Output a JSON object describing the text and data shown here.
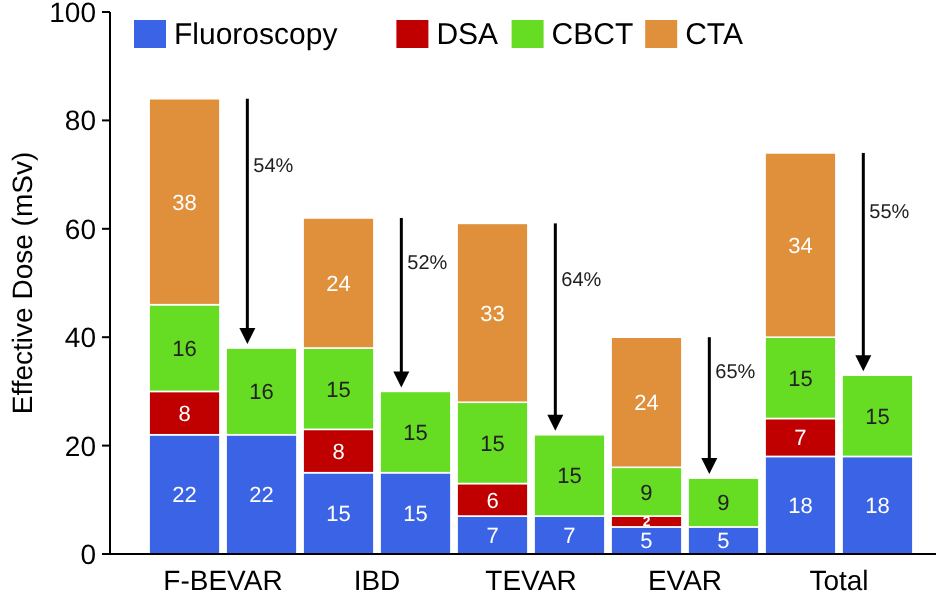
{
  "chart_data": {
    "type": "bar",
    "stacked": true,
    "ylabel": "Effective Dose (mSv)",
    "ylim": [
      0,
      100
    ],
    "yticks": [
      0,
      20,
      40,
      60,
      80,
      100
    ],
    "legend": "top",
    "grid": false,
    "categories": [
      "F-BEVAR",
      null,
      "IBD",
      null,
      "TEVAR",
      null,
      "EVAR",
      null,
      "Total",
      null
    ],
    "series": [
      {
        "name": "Fluoroscopy",
        "color": "#3b63e6",
        "values": [
          22,
          22,
          15,
          15,
          7,
          7,
          5,
          5,
          18,
          18
        ],
        "value_labels": [
          "22",
          "22",
          "15",
          "15",
          "7",
          "7",
          "5",
          "5",
          "18",
          "18"
        ]
      },
      {
        "name": "DSA",
        "color": "#c00000",
        "values": [
          8,
          0,
          8,
          0,
          6,
          0,
          2,
          0,
          7,
          0
        ],
        "value_labels": [
          "8",
          null,
          "8",
          null,
          "6",
          null,
          "2",
          null,
          "7",
          null
        ]
      },
      {
        "name": "CBCT",
        "color": "#66dd22",
        "values": [
          16,
          16,
          15,
          15,
          15,
          15,
          9,
          9,
          15,
          15
        ],
        "value_labels": [
          "16",
          "16",
          "15",
          "15",
          "15",
          "15",
          "9",
          "9",
          "15",
          "15"
        ]
      },
      {
        "name": "CTA",
        "color": "#e0903a",
        "values": [
          38,
          0,
          24,
          0,
          33,
          0,
          24,
          0,
          34,
          0
        ],
        "value_labels": [
          "38",
          null,
          "24",
          null,
          "33",
          null,
          "24",
          null,
          "34",
          null
        ]
      }
    ],
    "annotations": [
      "54%",
      "52%",
      "64%",
      "65%",
      "55%"
    ]
  }
}
